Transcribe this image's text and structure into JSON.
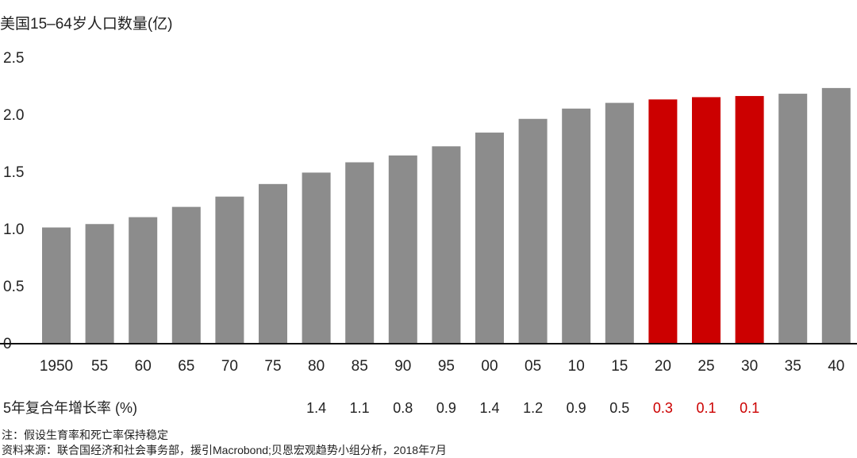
{
  "chart_data": {
    "type": "bar",
    "title": "美国15–64岁人口数量(亿)",
    "categories": [
      "1950",
      "55",
      "60",
      "65",
      "70",
      "75",
      "80",
      "85",
      "90",
      "95",
      "00",
      "05",
      "10",
      "15",
      "20",
      "25",
      "30",
      "35",
      "40"
    ],
    "values": [
      1.01,
      1.04,
      1.1,
      1.19,
      1.28,
      1.39,
      1.49,
      1.58,
      1.64,
      1.72,
      1.84,
      1.96,
      2.05,
      2.1,
      2.13,
      2.15,
      2.16,
      2.18,
      2.23
    ],
    "highlight_categories": [
      "20",
      "25",
      "30"
    ],
    "ylim": [
      0,
      2.5
    ],
    "yticks": [
      0,
      0.5,
      1.0,
      1.5,
      2.0,
      2.5
    ],
    "ytick_labels": [
      "0",
      "0.5",
      "1.0",
      "1.5",
      "2.0",
      "2.5"
    ],
    "xlabel": "",
    "ylabel": "",
    "grid": false,
    "colors": {
      "bar": "#8c8c8c",
      "highlight": "#cc0000",
      "axis": "#111111",
      "text": "#222222"
    },
    "growth_row": {
      "label": "5年复合年增长率 (%)",
      "values": [
        {
          "category": "80",
          "value": "1.4",
          "highlight": false
        },
        {
          "category": "85",
          "value": "1.1",
          "highlight": false
        },
        {
          "category": "90",
          "value": "0.8",
          "highlight": false
        },
        {
          "category": "95",
          "value": "0.9",
          "highlight": false
        },
        {
          "category": "00",
          "value": "1.4",
          "highlight": false
        },
        {
          "category": "05",
          "value": "1.2",
          "highlight": false
        },
        {
          "category": "10",
          "value": "0.9",
          "highlight": false
        },
        {
          "category": "15",
          "value": "0.5",
          "highlight": false
        },
        {
          "category": "20",
          "value": "0.3",
          "highlight": true
        },
        {
          "category": "25",
          "value": "0.1",
          "highlight": true
        },
        {
          "category": "30",
          "value": "0.1",
          "highlight": true
        }
      ]
    },
    "notes": [
      "注：假设生育率和死亡率保持稳定",
      "资料来源：联合国经济和社会事务部，援引Macrobond;贝恩宏观趋势小组分析，2018年7月"
    ]
  }
}
